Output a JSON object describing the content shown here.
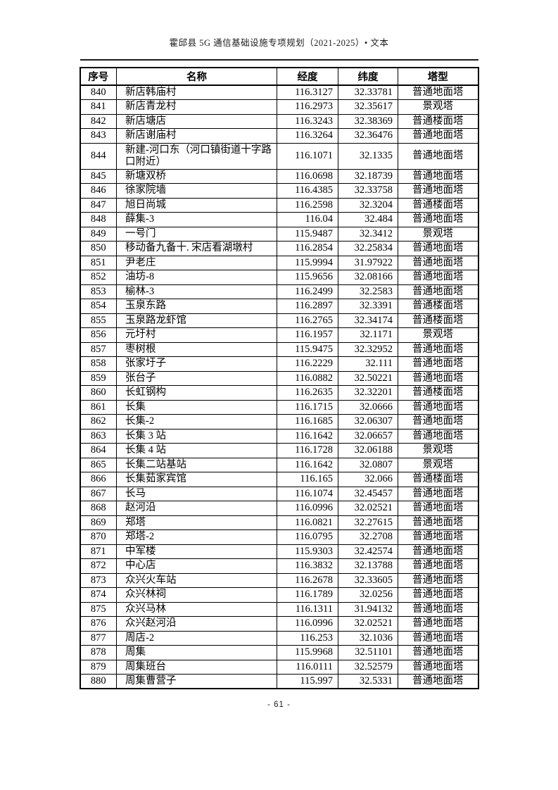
{
  "page": {
    "header_title": "霍邱县 5G 通信基础设施专项规划（2021-2025）• 文本",
    "page_number": "- 61 -"
  },
  "table": {
    "columns": [
      "序号",
      "名称",
      "经度",
      "纬度",
      "塔型"
    ],
    "rows": [
      [
        "840",
        "新店韩庙村",
        "116.3127",
        "32.33781",
        "普通地面塔"
      ],
      [
        "841",
        "新店青龙村",
        "116.2973",
        "32.35617",
        "景观塔"
      ],
      [
        "842",
        "新店塘店",
        "116.3243",
        "32.38369",
        "普通楼面塔"
      ],
      [
        "843",
        "新店谢庙村",
        "116.3264",
        "32.36476",
        "普通地面塔"
      ],
      [
        "844",
        "新建-河口东（河口镇街道十字路口附近）",
        "116.1071",
        "32.1335",
        "普通地面塔"
      ],
      [
        "845",
        "新塘双桥",
        "116.0698",
        "32.18739",
        "普通地面塔"
      ],
      [
        "846",
        "徐家院墙",
        "116.4385",
        "32.33758",
        "普通地面塔"
      ],
      [
        "847",
        "旭日尚城",
        "116.2598",
        "32.3204",
        "普通楼面塔"
      ],
      [
        "848",
        "薛集-3",
        "116.04",
        "32.484",
        "普通地面塔"
      ],
      [
        "849",
        "一号门",
        "115.9487",
        "32.3412",
        "景观塔"
      ],
      [
        "850",
        "移动备九备十. 宋店看湖墩村",
        "116.2854",
        "32.25834",
        "普通地面塔"
      ],
      [
        "851",
        "尹老庄",
        "115.9994",
        "31.97922",
        "普通地面塔"
      ],
      [
        "852",
        "油坊-8",
        "115.9656",
        "32.08166",
        "普通地面塔"
      ],
      [
        "853",
        "榆林-3",
        "116.2499",
        "32.2583",
        "普通地面塔"
      ],
      [
        "854",
        "玉泉东路",
        "116.2897",
        "32.3391",
        "普通楼面塔"
      ],
      [
        "855",
        "玉泉路龙虾馆",
        "116.2765",
        "32.34174",
        "普通楼面塔"
      ],
      [
        "856",
        "元圩村",
        "116.1957",
        "32.1171",
        "景观塔"
      ],
      [
        "857",
        "枣树根",
        "115.9475",
        "32.32952",
        "普通地面塔"
      ],
      [
        "858",
        "张家圩子",
        "116.2229",
        "32.111",
        "普通地面塔"
      ],
      [
        "859",
        "张台子",
        "116.0882",
        "32.50221",
        "普通地面塔"
      ],
      [
        "860",
        "长虹钢构",
        "116.2635",
        "32.32201",
        "普通楼面塔"
      ],
      [
        "861",
        "长集",
        "116.1715",
        "32.0666",
        "普通地面塔"
      ],
      [
        "862",
        "长集-2",
        "116.1685",
        "32.06307",
        "普通地面塔"
      ],
      [
        "863",
        "长集 3 站",
        "116.1642",
        "32.06657",
        "普通地面塔"
      ],
      [
        "864",
        "长集 4 站",
        "116.1728",
        "32.06188",
        "景观塔"
      ],
      [
        "865",
        "长集二站基站",
        "116.1642",
        "32.0807",
        "景观塔"
      ],
      [
        "866",
        "长集茹家宾馆",
        "116.165",
        "32.066",
        "普通楼面塔"
      ],
      [
        "867",
        "长马",
        "116.1074",
        "32.45457",
        "普通地面塔"
      ],
      [
        "868",
        "赵河沿",
        "116.0996",
        "32.02521",
        "普通地面塔"
      ],
      [
        "869",
        "郑塔",
        "116.0821",
        "32.27615",
        "普通地面塔"
      ],
      [
        "870",
        "郑塔-2",
        "116.0795",
        "32.2708",
        "普通地面塔"
      ],
      [
        "871",
        "中军楼",
        "115.9303",
        "32.42574",
        "普通地面塔"
      ],
      [
        "872",
        "中心店",
        "116.3832",
        "32.13788",
        "普通地面塔"
      ],
      [
        "873",
        "众兴火车站",
        "116.2678",
        "32.33605",
        "普通地面塔"
      ],
      [
        "874",
        "众兴林祠",
        "116.1789",
        "32.0256",
        "普通地面塔"
      ],
      [
        "875",
        "众兴马林",
        "116.1311",
        "31.94132",
        "普通地面塔"
      ],
      [
        "876",
        "众兴赵河沿",
        "116.0996",
        "32.02521",
        "普通地面塔"
      ],
      [
        "877",
        "周店-2",
        "116.253",
        "32.1036",
        "普通地面塔"
      ],
      [
        "878",
        "周集",
        "115.9968",
        "32.51101",
        "普通地面塔"
      ],
      [
        "879",
        "周集班台",
        "116.0111",
        "32.52579",
        "普通地面塔"
      ],
      [
        "880",
        "周集曹营子",
        "115.997",
        "32.5331",
        "普通地面塔"
      ]
    ]
  }
}
